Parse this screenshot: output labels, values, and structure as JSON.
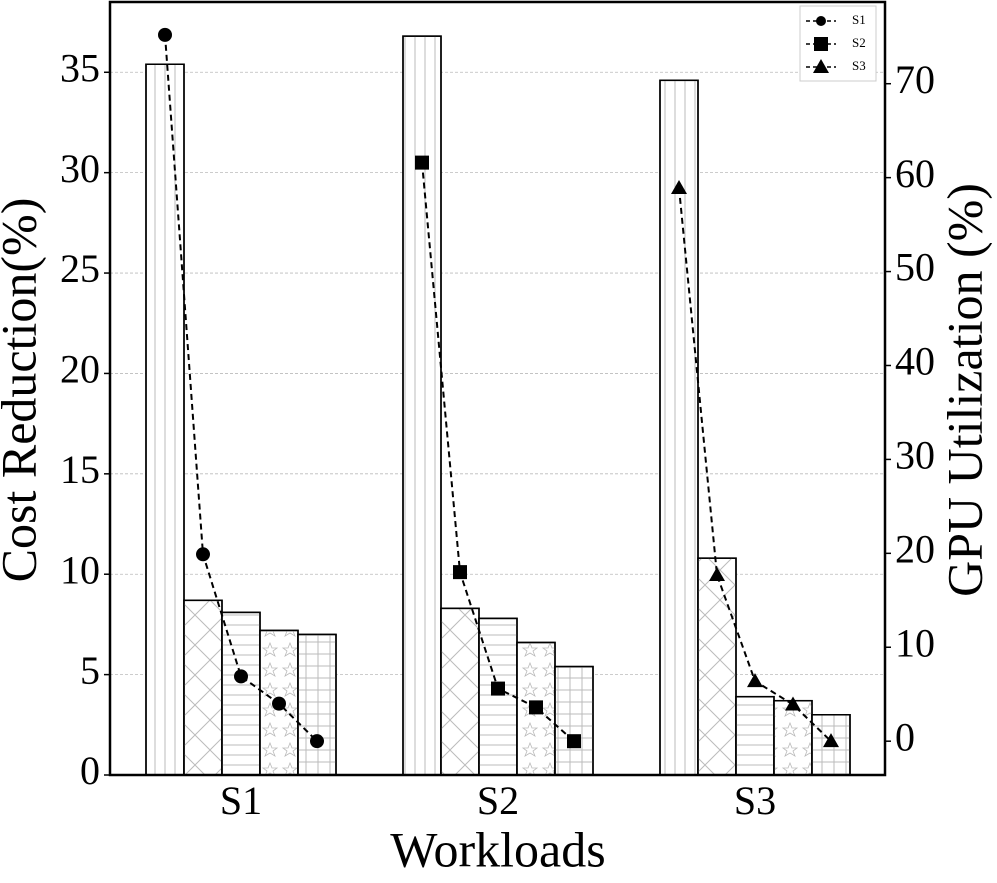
{
  "chart_data": {
    "type": "bar",
    "xlabel": "Workloads",
    "ylabel": "Cost Reduction(%)",
    "y2label": "GPU Utilization (%)",
    "categories": [
      "S1",
      "S2",
      "S3"
    ],
    "series": [
      {
        "hatch": "|",
        "values": [
          35.4,
          36.8,
          34.6
        ]
      },
      {
        "hatch": "x",
        "values": [
          8.7,
          8.3,
          10.8
        ]
      },
      {
        "hatch": "-",
        "values": [
          8.1,
          7.8,
          3.9
        ]
      },
      {
        "hatch": "*",
        "values": [
          7.2,
          6.6,
          3.7
        ]
      },
      {
        "hatch": "+",
        "values": [
          7.0,
          5.4,
          3.0
        ]
      }
    ],
    "line_series": [
      {
        "name": "S1",
        "marker": "circle",
        "axis": "y2",
        "color": "#000000",
        "values": [
          75.2,
          19.9,
          6.9,
          4.0,
          0
        ]
      },
      {
        "name": "S2",
        "marker": "square",
        "axis": "y2",
        "color": "#000000",
        "values": [
          61.6,
          18.0,
          5.6,
          3.6,
          0
        ]
      },
      {
        "name": "S3",
        "marker": "triangle",
        "axis": "y2",
        "color": "#000000",
        "values": [
          58.9,
          17.7,
          6.4,
          3.9,
          0
        ]
      }
    ],
    "ylim": [
      0,
      38.5
    ],
    "yticks": [
      0,
      5,
      10,
      15,
      20,
      25,
      30,
      35
    ],
    "y2lim": [
      -3.6,
      78.7
    ],
    "y2ticks": [
      0,
      10,
      20,
      30,
      40,
      50,
      60,
      70
    ],
    "grid": true,
    "legend": "upper right"
  }
}
